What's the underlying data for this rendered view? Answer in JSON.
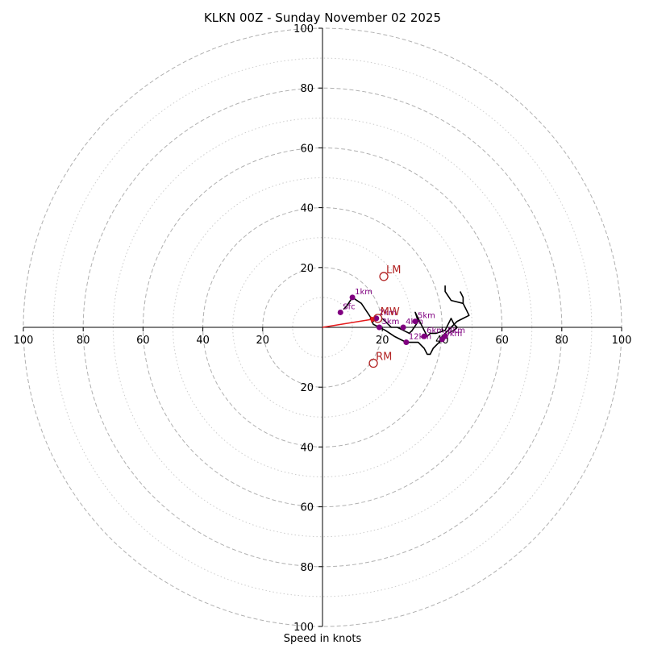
{
  "chart_data": {
    "type": "hodograph",
    "title": "KLKN 00Z - Sunday November 02 2025",
    "xlabel": "Speed in knots",
    "ylabel": "",
    "xlim": [
      -100,
      100
    ],
    "ylim": [
      -100,
      100
    ],
    "ring_major": [
      20,
      40,
      60,
      80,
      100
    ],
    "ring_minor": [
      10,
      30,
      50,
      70,
      90
    ],
    "x_ticks": [
      {
        "v": -100,
        "label": "100"
      },
      {
        "v": -80,
        "label": "80"
      },
      {
        "v": -60,
        "label": "60"
      },
      {
        "v": -40,
        "label": "40"
      },
      {
        "v": -20,
        "label": "20"
      },
      {
        "v": 20,
        "label": "20"
      },
      {
        "v": 40,
        "label": "40"
      },
      {
        "v": 60,
        "label": "60"
      },
      {
        "v": 80,
        "label": "80"
      },
      {
        "v": 100,
        "label": "100"
      }
    ],
    "y_ticks": [
      {
        "v": 100,
        "label": "100"
      },
      {
        "v": 80,
        "label": "80"
      },
      {
        "v": 60,
        "label": "60"
      },
      {
        "v": 40,
        "label": "40"
      },
      {
        "v": 20,
        "label": "20"
      },
      {
        "v": -20,
        "label": "20"
      },
      {
        "v": -40,
        "label": "40"
      },
      {
        "v": -60,
        "label": "60"
      },
      {
        "v": -80,
        "label": "80"
      },
      {
        "v": -100,
        "label": "100"
      }
    ],
    "trace": [
      [
        7,
        6
      ],
      [
        8,
        7
      ],
      [
        10,
        10
      ],
      [
        13,
        8
      ],
      [
        15,
        5
      ],
      [
        17,
        2
      ],
      [
        16,
        3
      ],
      [
        17,
        1
      ],
      [
        19,
        0
      ],
      [
        21,
        -1
      ],
      [
        24,
        -3
      ],
      [
        28,
        -5
      ],
      [
        32,
        -5
      ],
      [
        34,
        -7
      ],
      [
        35,
        -9
      ],
      [
        36,
        -9
      ],
      [
        37,
        -7
      ],
      [
        39,
        -5
      ],
      [
        40,
        -3
      ],
      [
        41,
        -2
      ],
      [
        42,
        -1
      ],
      [
        43,
        0
      ],
      [
        44,
        1
      ],
      [
        43,
        3
      ],
      [
        41,
        -1
      ],
      [
        38,
        -2
      ],
      [
        36,
        -2
      ],
      [
        35,
        -3
      ],
      [
        34,
        -1
      ],
      [
        33,
        1
      ],
      [
        32,
        3
      ],
      [
        31,
        5
      ],
      [
        32,
        2
      ],
      [
        30,
        -1
      ],
      [
        29,
        -2
      ],
      [
        27,
        -1
      ],
      [
        25,
        0
      ],
      [
        23,
        0
      ],
      [
        22,
        1
      ],
      [
        21,
        2
      ],
      [
        20,
        3
      ]
    ],
    "upper_trace": [
      [
        41,
        14
      ],
      [
        41,
        12
      ],
      [
        43,
        9
      ],
      [
        47,
        8
      ],
      [
        48,
        6
      ],
      [
        49,
        4
      ],
      [
        47,
        3
      ],
      [
        45,
        2
      ],
      [
        44,
        1
      ],
      [
        45,
        0
      ],
      [
        44,
        -1
      ],
      [
        42,
        -2
      ]
    ],
    "upper_trace2": [
      [
        47,
        8
      ],
      [
        47,
        10
      ],
      [
        46,
        12
      ]
    ],
    "height_markers": [
      {
        "label": "Sfc",
        "u": 6,
        "v": 5
      },
      {
        "label": "1km",
        "u": 10,
        "v": 10
      },
      {
        "label": "2km",
        "u": 18,
        "v": 3
      },
      {
        "label": "3km",
        "u": 19,
        "v": 0
      },
      {
        "label": "4km",
        "u": 27,
        "v": 0
      },
      {
        "label": "5km",
        "u": 31,
        "v": 2
      },
      {
        "label": "6km",
        "u": 34,
        "v": -3
      },
      {
        "label": "12km",
        "u": 28,
        "v": -5
      },
      {
        "label": "8km",
        "u": 41,
        "v": -3
      },
      {
        "label": "9km",
        "u": 40,
        "v": -4
      }
    ],
    "motion_markers": [
      {
        "label": "LM",
        "u": 20.5,
        "v": 17
      },
      {
        "label": "MW",
        "u": 18.5,
        "v": 3
      },
      {
        "label": "RM",
        "u": 17,
        "v": -12
      }
    ],
    "mean_wind_arrow": {
      "u": 18.5,
      "v": 3
    },
    "colors": {
      "grid": "#b0b0b0",
      "axis": "#000000",
      "trace": "#000000",
      "height_marker": "#800080",
      "storm_motion": "#b22222",
      "arrow": "#e41a1c"
    }
  }
}
